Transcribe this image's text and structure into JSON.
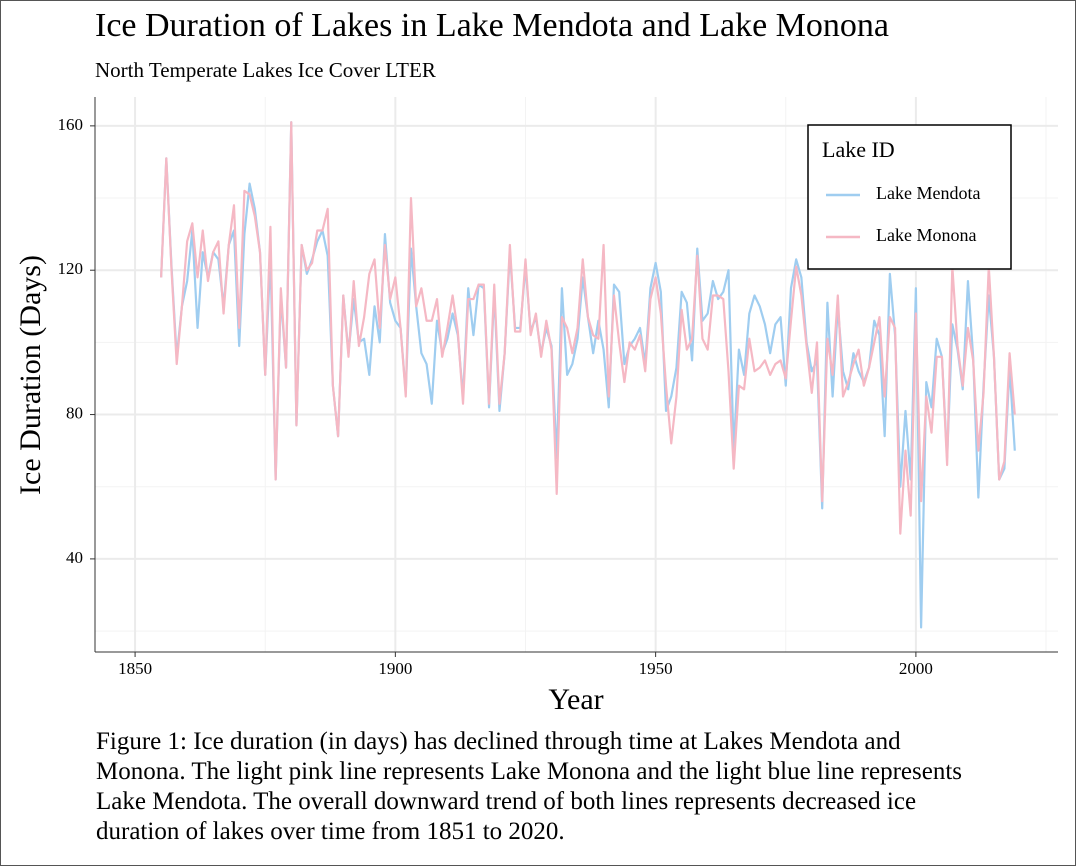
{
  "chart_data": {
    "type": "line",
    "title": "Ice Duration of Lakes in Lake Mendota and Lake Monona",
    "subtitle": "North Temperate Lakes Ice Cover LTER",
    "x_label": "Year",
    "y_label": "Ice Duration (Days)",
    "caption": "Figure 1: Ice duration (in days) has declined through time at Lakes Mendota and Monona. The light pink line represents Lake Monona and the light blue line represents Lake Mendota. The overall downward trend of both lines represents decreased ice duration of lakes over time from 1851 to 2020.",
    "legend_title": "Lake ID",
    "legend_position": "top-right",
    "grid": true,
    "xlim": [
      1842.3,
      2027.3
    ],
    "ylim": [
      14.2,
      168
    ],
    "xticks": [
      1850,
      1900,
      1950,
      2000
    ],
    "yticks": [
      40,
      80,
      120,
      160
    ],
    "x_minor_ticks": [
      1875,
      1925,
      1975,
      2025
    ],
    "y_minor_ticks": [
      20,
      60,
      100,
      140
    ],
    "x": [
      1855,
      1856,
      1857,
      1858,
      1859,
      1860,
      1861,
      1862,
      1863,
      1864,
      1865,
      1866,
      1867,
      1868,
      1869,
      1870,
      1871,
      1872,
      1873,
      1874,
      1875,
      1876,
      1877,
      1878,
      1879,
      1880,
      1881,
      1882,
      1883,
      1884,
      1885,
      1886,
      1887,
      1888,
      1889,
      1890,
      1891,
      1892,
      1893,
      1894,
      1895,
      1896,
      1897,
      1898,
      1899,
      1900,
      1901,
      1902,
      1903,
      1904,
      1905,
      1906,
      1907,
      1908,
      1909,
      1910,
      1911,
      1912,
      1913,
      1914,
      1915,
      1916,
      1917,
      1918,
      1919,
      1920,
      1921,
      1922,
      1923,
      1924,
      1925,
      1926,
      1927,
      1928,
      1929,
      1930,
      1931,
      1932,
      1933,
      1934,
      1935,
      1936,
      1937,
      1938,
      1939,
      1940,
      1941,
      1942,
      1943,
      1944,
      1945,
      1946,
      1947,
      1948,
      1949,
      1950,
      1951,
      1952,
      1953,
      1954,
      1955,
      1956,
      1957,
      1958,
      1959,
      1960,
      1961,
      1962,
      1963,
      1964,
      1965,
      1966,
      1967,
      1968,
      1969,
      1970,
      1971,
      1972,
      1973,
      1974,
      1975,
      1976,
      1977,
      1978,
      1979,
      1980,
      1981,
      1982,
      1983,
      1984,
      1985,
      1986,
      1987,
      1988,
      1989,
      1990,
      1991,
      1992,
      1993,
      1994,
      1995,
      1996,
      1997,
      1998,
      1999,
      2000,
      2001,
      2002,
      2003,
      2004,
      2005,
      2006,
      2007,
      2008,
      2009,
      2010,
      2011,
      2012,
      2013,
      2014,
      2015,
      2016,
      2017,
      2018,
      2019
    ],
    "series": [
      {
        "name": "Lake Mendota",
        "color": "#9fcdf0",
        "values": [
          118,
          151,
          121,
          96,
          110,
          117,
          131,
          104,
          125,
          118,
          125,
          123,
          110,
          127,
          131,
          99,
          130,
          144,
          137,
          125,
          91,
          124,
          62,
          113,
          93,
          161,
          77,
          127,
          119,
          123,
          128,
          131,
          124,
          88,
          74,
          113,
          97,
          112,
          100,
          101,
          91,
          110,
          100,
          130,
          111,
          106,
          104,
          86,
          126,
          110,
          97,
          94,
          83,
          106,
          97,
          101,
          108,
          102,
          85,
          115,
          102,
          116,
          115,
          82,
          114,
          81,
          97,
          125,
          104,
          104,
          121,
          103,
          107,
          97,
          104,
          99,
          68,
          115,
          91,
          94,
          101,
          118,
          107,
          97,
          106,
          98,
          82,
          116,
          114,
          94,
          99,
          101,
          104,
          94,
          115,
          122,
          114,
          81,
          85,
          93,
          114,
          111,
          95,
          126,
          106,
          108,
          117,
          112,
          114,
          120,
          70,
          98,
          91,
          108,
          113,
          110,
          105,
          97,
          105,
          107,
          88,
          115,
          123,
          118,
          100,
          92,
          95,
          54,
          111,
          85,
          110,
          92,
          87,
          97,
          92,
          89,
          93,
          106,
          102,
          74,
          119,
          102,
          60,
          81,
          62,
          115,
          21,
          89,
          82,
          101,
          96,
          68,
          105,
          98,
          87,
          117,
          96,
          57,
          88,
          113,
          96,
          62,
          65,
          93,
          70
        ]
      },
      {
        "name": "Lake Monona",
        "color": "#f5b8c4",
        "values": [
          118,
          151,
          120,
          94,
          110,
          128,
          133,
          118,
          131,
          117,
          125,
          128,
          108,
          127,
          138,
          104,
          142,
          141,
          135,
          125,
          91,
          132,
          62,
          115,
          93,
          161,
          77,
          127,
          120,
          122,
          131,
          131,
          137,
          88,
          74,
          113,
          96,
          117,
          99,
          107,
          119,
          123,
          104,
          127,
          112,
          118,
          104,
          85,
          140,
          110,
          115,
          106,
          106,
          112,
          96,
          104,
          113,
          103,
          83,
          112,
          112,
          116,
          116,
          83,
          116,
          83,
          97,
          127,
          103,
          103,
          123,
          102,
          108,
          96,
          106,
          98,
          58,
          107,
          104,
          97,
          104,
          123,
          107,
          102,
          101,
          127,
          85,
          113,
          100,
          89,
          100,
          98,
          102,
          92,
          112,
          118,
          108,
          88,
          72,
          85,
          109,
          98,
          101,
          124,
          101,
          98,
          113,
          113,
          112,
          92,
          65,
          88,
          87,
          101,
          92,
          93,
          95,
          91,
          94,
          95,
          90,
          106,
          121,
          113,
          99,
          86,
          100,
          56,
          101,
          91,
          113,
          85,
          89,
          94,
          98,
          88,
          93,
          100,
          107,
          85,
          107,
          104,
          47,
          70,
          52,
          108,
          56,
          85,
          75,
          96,
          96,
          66,
          121,
          99,
          88,
          104,
          95,
          70,
          86,
          121,
          96,
          62,
          67,
          97,
          80
        ]
      }
    ]
  }
}
